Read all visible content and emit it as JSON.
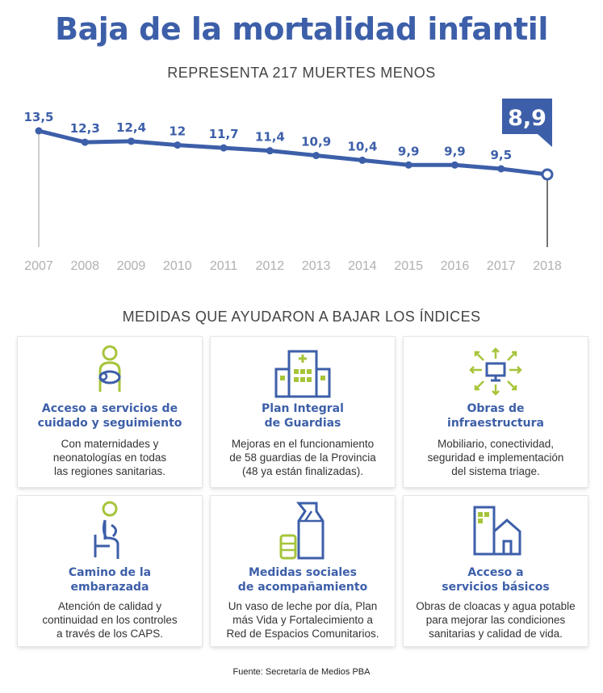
{
  "title": "Baja de la mortalidad infantil",
  "subtitle": "REPRESENTA 217 MUERTES MENOS",
  "chart_data": {
    "type": "line",
    "x": [
      "2007",
      "2008",
      "2009",
      "2010",
      "2011",
      "2012",
      "2013",
      "2014",
      "2015",
      "2016",
      "2017",
      "2018"
    ],
    "y": [
      13.5,
      12.3,
      12.4,
      12,
      11.7,
      11.4,
      10.9,
      10.4,
      9.9,
      9.9,
      9.5,
      8.9
    ],
    "labels": [
      "13,5",
      "12,3",
      "12,4",
      "12",
      "11,7",
      "11,4",
      "10,9",
      "10,4",
      "9,9",
      "9,9",
      "9,5",
      "8,9"
    ],
    "highlight_label": "8,9",
    "line_color": "#3d5fa9",
    "highlight_color": "#3d5fa9",
    "grid": false,
    "ylim": [
      0,
      14
    ]
  },
  "section_title": "MEDIDAS QUE AYUDARON A BAJAR LOS ÍNDICES",
  "colors": {
    "blue": "#3d5fa9",
    "green": "#a6c43a"
  },
  "cards": [
    {
      "icon": "mother-baby-icon",
      "title": "Acceso a servicios de\ncuidado y seguimiento",
      "text": "Con maternidades y\nneonatologías en todas\nlas regiones sanitarias."
    },
    {
      "icon": "hospital-icon",
      "title": "Plan Integral\nde Guardias",
      "text": "Mejoras en el funcionamiento\nde 58 guardias de la Provincia\n(48 ya están finalizadas)."
    },
    {
      "icon": "network-monitor-icon",
      "title": "Obras de\ninfraestructura",
      "text": "Mobiliario, conectividad,\nseguridad e implementación\ndel sistema triage."
    },
    {
      "icon": "pregnant-woman-icon",
      "title": "Camino de la\nembarazada",
      "text": "Atención de calidad y\ncontinuidad en los controles\na través de los CAPS."
    },
    {
      "icon": "milk-carton-icon",
      "title": "Medidas sociales\nde acompañamiento",
      "text": "Un vaso de leche por día, Plan\nmás Vida y Fortalecimiento a\nRed de Espacios Comunitarios."
    },
    {
      "icon": "house-building-icon",
      "title": "Acceso a\nservicios básicos",
      "text": "Obras de cloacas y agua potable\npara mejorar las condiciones\nsanitarias y calidad de vida."
    }
  ],
  "source": "Fuente: Secretaría de Medios PBA"
}
